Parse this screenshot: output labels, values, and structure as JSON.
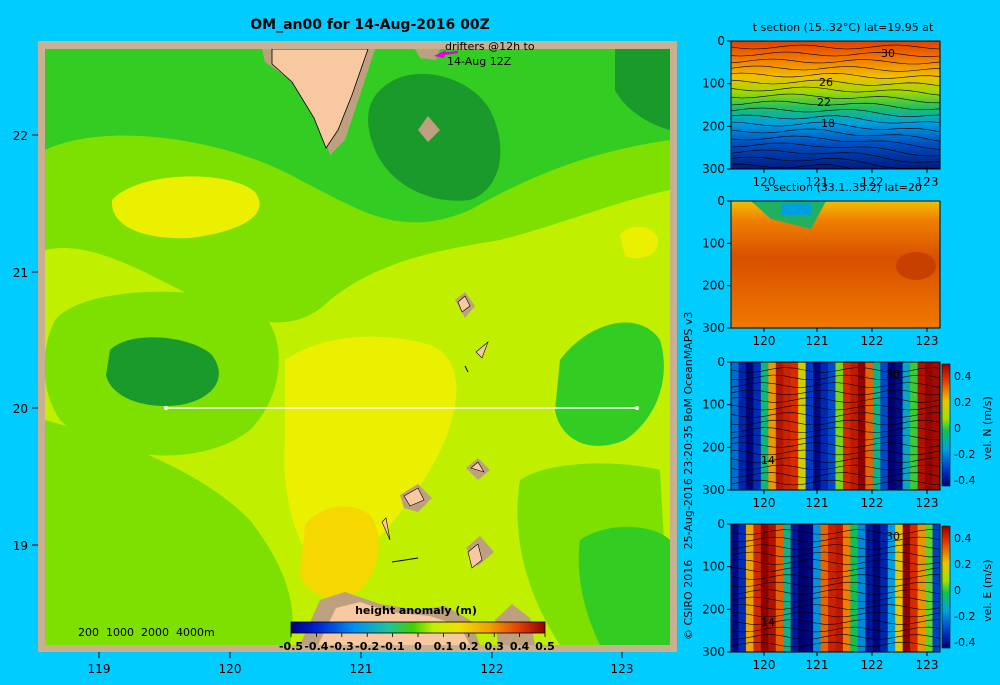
{
  "colors": {
    "background": "#00ccff",
    "map_frame": "#c8b090",
    "land": "#f8c8a0",
    "land_shadow": "#bca080",
    "section_line": "#ffffff",
    "drifter": "#e000e0",
    "contour_line": "#000000",
    "sea_palette": [
      "#1a9a2a",
      "#33cc22",
      "#7ee000",
      "#c0f000",
      "#eaf000",
      "#f5d800"
    ]
  },
  "main_map": {
    "title": "OM_an00 for 14-Aug-2016 00Z",
    "drifter_note_line1": "drifters @12h to",
    "drifter_note_line2": "14-Aug 12Z",
    "depth_legend": "200  1000  2000  4000m",
    "lat_ticks": [
      "22",
      "21",
      "20",
      "19"
    ],
    "lon_ticks": [
      "119",
      "120",
      "121",
      "122",
      "123"
    ],
    "section_line_lat": 20,
    "colorbar": {
      "title": "height anomaly (m)",
      "min": -0.5,
      "max": 0.5,
      "ticks": [
        "-0.5",
        "-0.4",
        "-0.3",
        "-0.2",
        "-0.1",
        "0",
        "0.1",
        "0.2",
        "0.3",
        "0.4",
        "0.5"
      ]
    }
  },
  "credit": "© CSIRO 2016   25-Aug-2016 23:20:35 BoM OceanMAPS v3",
  "sections": [
    {
      "id": "t",
      "title": "t section (15..32°C) lat=19.95 at",
      "palette": "temperature",
      "depth_ticks": [
        "0",
        "100",
        "200",
        "300"
      ],
      "lon_ticks": [
        "120",
        "121",
        "122",
        "123"
      ],
      "contour_labels": [
        "30",
        "26",
        "22",
        "18"
      ],
      "colorbar": null
    },
    {
      "id": "s",
      "title": "s section (33.1..35.2) lat=20",
      "palette": "salinity",
      "depth_ticks": [
        "0",
        "100",
        "200",
        "300"
      ],
      "lon_ticks": [
        "120",
        "121",
        "122",
        "123"
      ],
      "contour_labels": [],
      "colorbar": null
    },
    {
      "id": "vn",
      "title": "",
      "palette": "velocity",
      "depth_ticks": [
        "0",
        "100",
        "200",
        "300"
      ],
      "lon_ticks": [
        "120",
        "121",
        "122",
        "123"
      ],
      "contour_labels": [
        "30",
        "14"
      ],
      "colorbar": {
        "label": "vel. N (m/s)",
        "ticks": [
          "0.4",
          "0.2",
          "0",
          "-0.2",
          "-0.4"
        ]
      }
    },
    {
      "id": "ve",
      "title": "",
      "palette": "velocity",
      "depth_ticks": [
        "0",
        "100",
        "200",
        "300"
      ],
      "lon_ticks": [
        "120",
        "121",
        "122",
        "123"
      ],
      "contour_labels": [
        "30",
        "14"
      ],
      "colorbar": {
        "label": "vel. E (m/s)",
        "ticks": [
          "0.4",
          "0.2",
          "0",
          "-0.2",
          "-0.4"
        ]
      }
    }
  ]
}
